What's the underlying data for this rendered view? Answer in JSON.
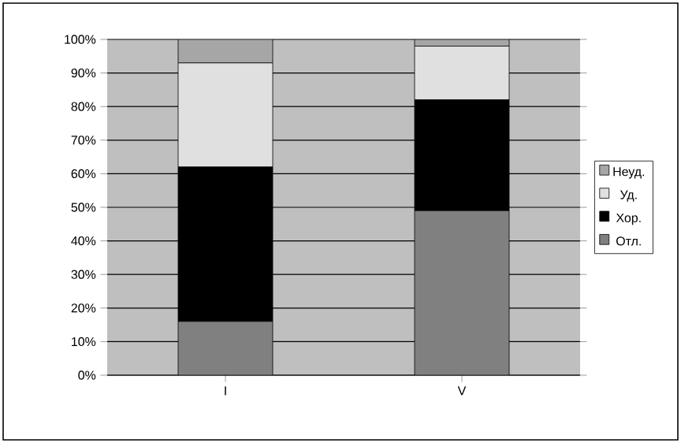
{
  "chart_data": {
    "type": "bar",
    "stacked": true,
    "categories": [
      "I",
      "V"
    ],
    "series": [
      {
        "name": "Отл.",
        "color": "#808080",
        "values": [
          16,
          49
        ]
      },
      {
        "name": "Хор.",
        "color": "#000000",
        "values": [
          46,
          33
        ]
      },
      {
        "name": "Уд.",
        "color": "#e0e0e0",
        "values": [
          31,
          16
        ]
      },
      {
        "name": "Неуд.",
        "color": "#a6a6a6",
        "values": [
          7,
          2
        ]
      }
    ],
    "ylim": [
      0,
      100
    ],
    "yticks": [
      {
        "value": 0,
        "label": "0%"
      },
      {
        "value": 10,
        "label": "10%"
      },
      {
        "value": 20,
        "label": "20%"
      },
      {
        "value": 30,
        "label": "30%"
      },
      {
        "value": 40,
        "label": "40%"
      },
      {
        "value": 50,
        "label": "50%"
      },
      {
        "value": 60,
        "label": "60%"
      },
      {
        "value": 70,
        "label": "70%"
      },
      {
        "value": 80,
        "label": "80%"
      },
      {
        "value": 90,
        "label": "90%"
      },
      {
        "value": 100,
        "label": "100%"
      }
    ],
    "grid": "y",
    "legend": "right"
  }
}
